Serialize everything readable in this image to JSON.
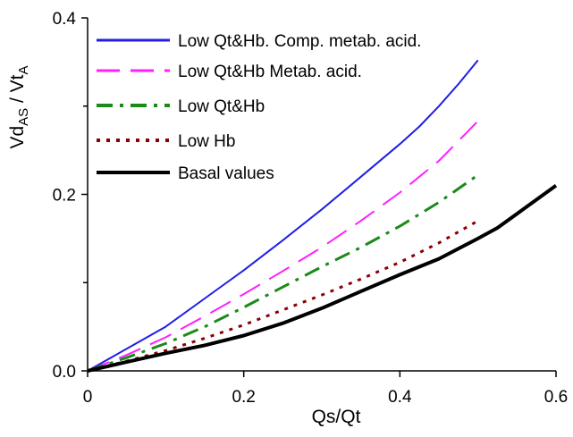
{
  "chart_data": {
    "type": "line",
    "title": "",
    "xlabel": "Qs/Qt",
    "ylabel": {
      "main": "Vd",
      "sub1": "AS",
      "mid": " / Vt",
      "sub2": "A"
    },
    "xlim": [
      0,
      0.6
    ],
    "ylim": [
      0,
      0.4
    ],
    "x_ticks": [
      0,
      0.2,
      0.4,
      0.6
    ],
    "x_tick_labels": [
      "0",
      "0.2",
      "0.4",
      "0.6"
    ],
    "y_ticks": [
      0,
      0.2,
      0.4
    ],
    "y_tick_labels": [
      "0.0",
      "0.2",
      "0.4"
    ],
    "y_minor_ticks": [
      0.1,
      0.3
    ],
    "grid": false,
    "legend_position": "top-left",
    "series": [
      {
        "name": "Low Qt&Hb. Comp. metab. acid.",
        "color": "#1f1fe6",
        "dash": "solid",
        "width": 2,
        "x": [
          0,
          0.05,
          0.1,
          0.15,
          0.2,
          0.25,
          0.3,
          0.35,
          0.4,
          0.425,
          0.45,
          0.475,
          0.5
        ],
        "y": [
          0,
          0.025,
          0.05,
          0.082,
          0.114,
          0.148,
          0.183,
          0.22,
          0.257,
          0.277,
          0.3,
          0.325,
          0.352
        ]
      },
      {
        "name": "Low Qt&Hb Metab. acid.",
        "color": "#ff1fff",
        "dash": "long-dash",
        "width": 2,
        "x": [
          0,
          0.05,
          0.1,
          0.15,
          0.2,
          0.25,
          0.3,
          0.35,
          0.4,
          0.45,
          0.5
        ],
        "y": [
          0,
          0.018,
          0.038,
          0.062,
          0.087,
          0.113,
          0.14,
          0.17,
          0.202,
          0.238,
          0.283
        ]
      },
      {
        "name": "Low Qt&Hb",
        "color": "#1a8a1a",
        "dash": "dash-dot",
        "width": 3,
        "x": [
          0,
          0.05,
          0.1,
          0.15,
          0.2,
          0.25,
          0.3,
          0.35,
          0.4,
          0.45,
          0.5
        ],
        "y": [
          0,
          0.015,
          0.031,
          0.05,
          0.072,
          0.095,
          0.118,
          0.14,
          0.164,
          0.191,
          0.222
        ]
      },
      {
        "name": "Low Hb",
        "color": "#8b0000",
        "dash": "dotted",
        "width": 3,
        "x": [
          0,
          0.05,
          0.1,
          0.15,
          0.2,
          0.25,
          0.3,
          0.35,
          0.4,
          0.45,
          0.5
        ],
        "y": [
          0,
          0.011,
          0.023,
          0.037,
          0.052,
          0.069,
          0.086,
          0.104,
          0.123,
          0.145,
          0.17
        ]
      },
      {
        "name": "Basal values",
        "color": "#000000",
        "dash": "solid",
        "width": 4,
        "x": [
          0,
          0.05,
          0.1,
          0.15,
          0.2,
          0.25,
          0.3,
          0.35,
          0.4,
          0.45,
          0.5,
          0.525,
          0.55,
          0.575,
          0.6
        ],
        "y": [
          0,
          0.01,
          0.02,
          0.029,
          0.04,
          0.054,
          0.071,
          0.09,
          0.109,
          0.127,
          0.15,
          0.162,
          0.178,
          0.194,
          0.21
        ]
      }
    ]
  }
}
